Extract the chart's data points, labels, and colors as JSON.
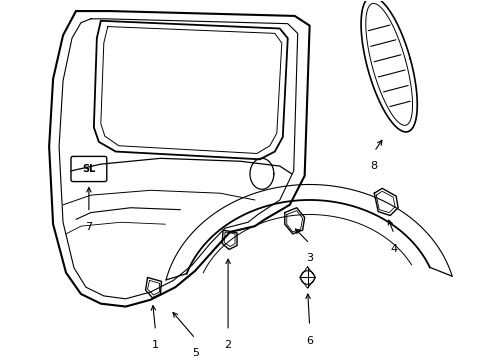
{
  "bg_color": "#ffffff",
  "line_color": "#000000",
  "figure_width": 4.89,
  "figure_height": 3.6,
  "dpi": 100
}
